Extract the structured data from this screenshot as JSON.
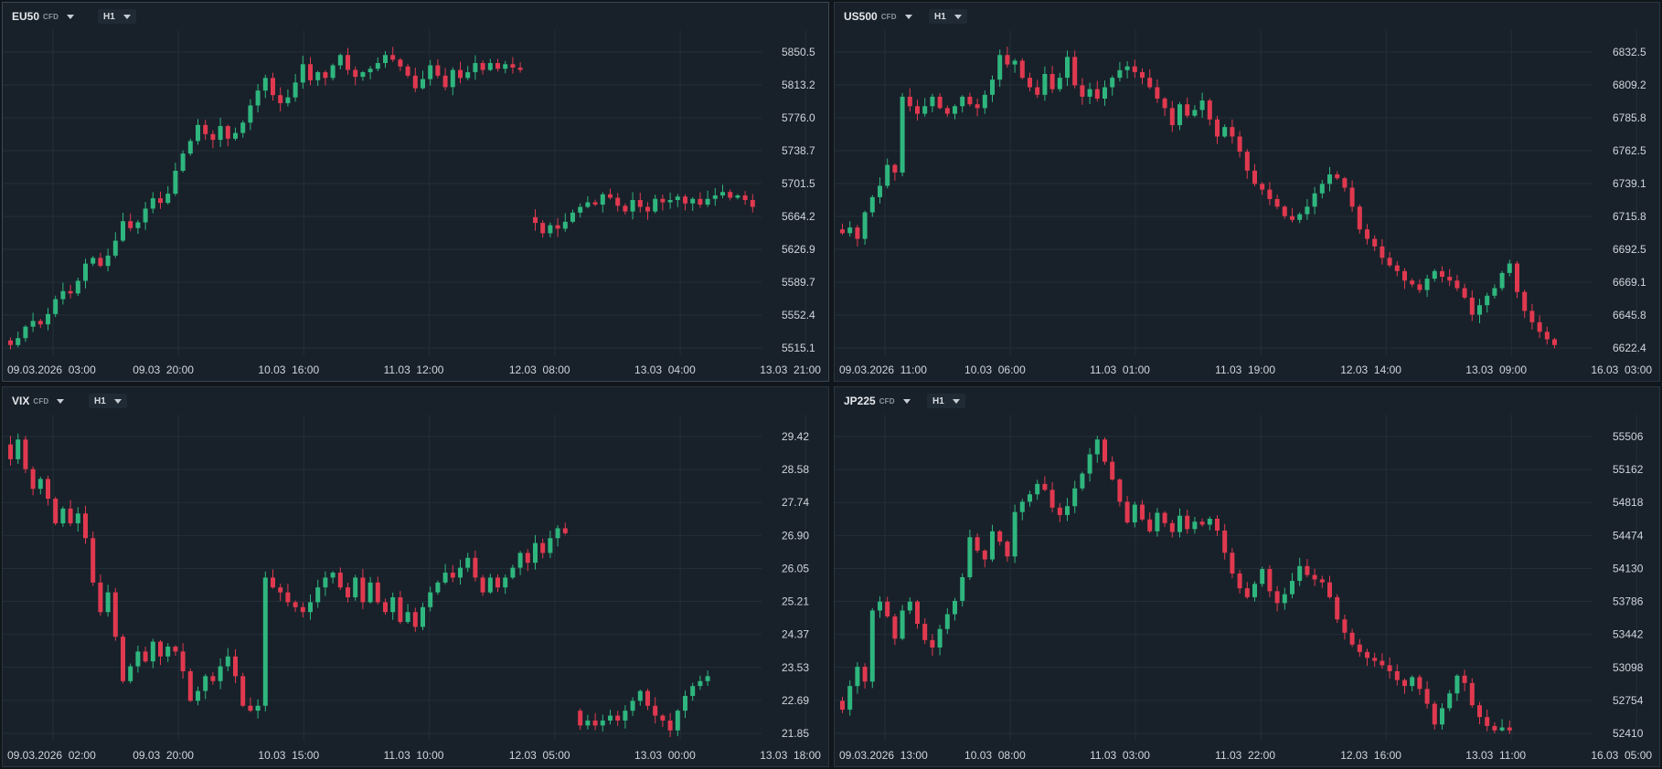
{
  "colors": {
    "up": "#2fb67e",
    "down": "#e0394f",
    "background": "#18212a",
    "grid": "#232e38"
  },
  "icons": {
    "dropdown": "caret-down-icon"
  },
  "chart_data": [
    {
      "type": "candlestick",
      "symbol": "EU50",
      "instrument_type": "CFD",
      "timeframe": "H1",
      "title": "",
      "y_ticks": [
        "5850.5",
        "5813.2",
        "5776.0",
        "5738.7",
        "5701.5",
        "5664.2",
        "5626.9",
        "5589.7",
        "5552.4",
        "5515.1"
      ],
      "ylim": [
        5515.1,
        5850.5
      ],
      "x_ticks": [
        "09.03.2026  03:00",
        "09.03  20:00",
        "10.03  16:00",
        "11.03  12:00",
        "12.03  08:00",
        "13.03  04:00",
        "13.03  21:00"
      ],
      "grid": true,
      "segments": [
        {
          "start": 5530,
          "moves": [
            -8,
            12,
            20,
            10,
            -6,
            18,
            26,
            14,
            -4,
            22,
            30,
            10,
            -14,
            18,
            26,
            34,
            -12,
            10,
            24,
            18,
            -8,
            16,
            40,
            30,
            22,
            28,
            -16,
            -10,
            24,
            -22,
            10,
            18,
            30,
            26,
            22,
            -30,
            -14,
            10,
            26,
            32,
            -28,
            14,
            -10,
            22,
            18,
            -26,
            -12,
            8,
            6,
            10,
            14,
            -8,
            -12,
            -16,
            -22,
            16,
            24,
            -18,
            -20,
            30,
            -14,
            10,
            16,
            -12,
            12,
            -10,
            8,
            -6,
            -4
          ],
          "base": 5515.1
        },
        {
          "gap": 1,
          "start": 5745,
          "moves": [
            -10,
            -18,
            14,
            -6,
            12,
            16,
            10,
            8,
            -4,
            18,
            -6,
            -14,
            -10,
            20,
            -12,
            -8,
            22,
            -6,
            4,
            6,
            -12,
            8,
            -10,
            10,
            6,
            6,
            -10,
            4,
            -8,
            -12,
            -10,
            -8,
            10,
            6,
            10,
            16,
            16,
            -24,
            -20,
            -6,
            -10,
            8,
            -4,
            -6
          ]
        }
      ]
    },
    {
      "type": "candlestick",
      "symbol": "US500",
      "instrument_type": "CFD",
      "timeframe": "H1",
      "title": "",
      "y_ticks": [
        "6832.5",
        "6809.2",
        "6785.8",
        "6762.5",
        "6739.1",
        "6715.8",
        "6692.5",
        "6669.1",
        "6645.8",
        "6622.4"
      ],
      "ylim": [
        6622.4,
        6832.5
      ],
      "x_ticks": [
        "09.03.2026  11:00",
        "10.03  06:00",
        "11.03  01:00",
        "11.03  19:00",
        "12.03  14:00",
        "13.03  09:00",
        "16.03  03:00"
      ],
      "grid": true,
      "segments": [
        {
          "start": 6668,
          "moves": [
            -4,
            6,
            -12,
            28,
            16,
            12,
            22,
            -8,
            80,
            -10,
            -8,
            8,
            10,
            -12,
            -6,
            8,
            10,
            -8,
            -4,
            14,
            16,
            26,
            -10,
            4,
            -18,
            -10,
            -8,
            22,
            -16,
            12,
            22,
            -30,
            -12,
            8,
            -10,
            12,
            10,
            8,
            4,
            -6,
            -6,
            -10,
            -12,
            -10,
            -18,
            22,
            -12,
            6,
            10,
            -20,
            -18,
            10,
            -10,
            -16,
            -20,
            -14,
            -6,
            -10,
            -8,
            -10,
            -4,
            6,
            8,
            14,
            10,
            10,
            -4,
            -10,
            -20,
            -24,
            -10,
            -8,
            -12,
            -8,
            -6,
            -10,
            -4,
            -6,
            12,
            8,
            -6,
            -4,
            -8,
            -10,
            -18,
            10,
            10,
            8,
            16,
            10,
            -30,
            -20,
            -12,
            -10,
            -8,
            -6
          ]
        }
      ]
    },
    {
      "type": "candlestick",
      "symbol": "VIX",
      "instrument_type": "CFD",
      "timeframe": "H1",
      "title": "",
      "y_ticks": [
        "29.42",
        "28.58",
        "27.74",
        "26.90",
        "26.05",
        "25.21",
        "24.37",
        "23.53",
        "22.69",
        "21.85"
      ],
      "ylim": [
        21.85,
        29.42
      ],
      "x_ticks": [
        "09.03.2026  02:00",
        "09.03  20:00",
        "10.03  15:00",
        "11.03  10:00",
        "12.03  05:00",
        "13.03  00:00",
        "13.03  18:00"
      ],
      "grid": true,
      "segments": [
        {
          "start": 29.6,
          "moves": [
            -0.3,
            0.4,
            -0.6,
            -0.4,
            0.2,
            -0.4,
            -0.5,
            0.3,
            -0.3,
            0.2,
            -0.5,
            -0.9,
            -0.6,
            0.4,
            -0.9,
            -0.9,
            0.3,
            0.3,
            -0.2,
            0.4,
            -0.3,
            0.2,
            -0.1,
            -0.4,
            -0.6,
            0.2,
            0.3,
            -0.1,
            0.3,
            0.2,
            -0.4,
            -0.6,
            -0.1,
            0.1,
            2.6,
            -0.2,
            -0.1,
            -0.2,
            -0.1,
            -0.1,
            0.2,
            0.3,
            0.2,
            0.1,
            -0.3,
            -0.2,
            0.4,
            -0.5,
            0.4,
            -0.4,
            -0.2,
            0.3,
            -0.5,
            0.2,
            -0.3,
            0.4,
            0.3,
            0.2,
            0.2,
            -0.1,
            0.2,
            0.2,
            -0.4,
            -0.3,
            0.3,
            -0.2,
            0.2,
            0.2,
            0.3,
            -0.2,
            0.4,
            -0.2,
            0.3,
            0.2,
            -0.1
          ]
        },
        {
          "gap": 1,
          "start": 24.2,
          "moves": [
            -0.3,
            0.1,
            -0.1,
            0.1,
            0.1,
            -0.1,
            0.2,
            0.2,
            0.2,
            -0.3,
            -0.2,
            -0.1,
            -0.2,
            0.4,
            0.3,
            0.2,
            0.1,
            0.1
          ]
        }
      ]
    },
    {
      "type": "candlestick",
      "symbol": "JP225",
      "instrument_type": "CFD",
      "timeframe": "H1",
      "title": "",
      "y_ticks": [
        "55506",
        "55162",
        "54818",
        "54474",
        "54130",
        "53786",
        "53442",
        "53098",
        "52754",
        "52410"
      ],
      "ylim": [
        52410,
        55506
      ],
      "x_ticks": [
        "09.03.2026  13:00",
        "10.03  08:00",
        "11.03  03:00",
        "11.03  22:00",
        "12.03  16:00",
        "13.03  11:00",
        "16.03  05:00"
      ],
      "grid": true,
      "segments": [
        {
          "start": 53000,
          "moves": [
            -120,
            320,
            260,
            -200,
            960,
            120,
            -200,
            -300,
            380,
            120,
            -300,
            -220,
            -100,
            250,
            200,
            180,
            320,
            540,
            -180,
            -120,
            380,
            -140,
            -200,
            600,
            140,
            100,
            140,
            -80,
            -240,
            -100,
            120,
            240,
            200,
            260,
            200,
            -300,
            -240,
            -300,
            -280,
            240,
            -200,
            -160,
            250,
            -140,
            -120,
            220,
            -180,
            100,
            -40,
            80,
            -160,
            -300,
            -280,
            -200,
            -120,
            180,
            200,
            -300,
            -160,
            120,
            180,
            200,
            -120,
            -60,
            -40,
            -200,
            -300,
            -180,
            -160,
            -100,
            -80,
            -40,
            -60,
            -80,
            -120,
            -80,
            120,
            -160,
            -200,
            -280,
            220,
            200,
            240,
            -100,
            -300,
            -160,
            -120,
            -60,
            40,
            -40
          ]
        }
      ]
    }
  ]
}
